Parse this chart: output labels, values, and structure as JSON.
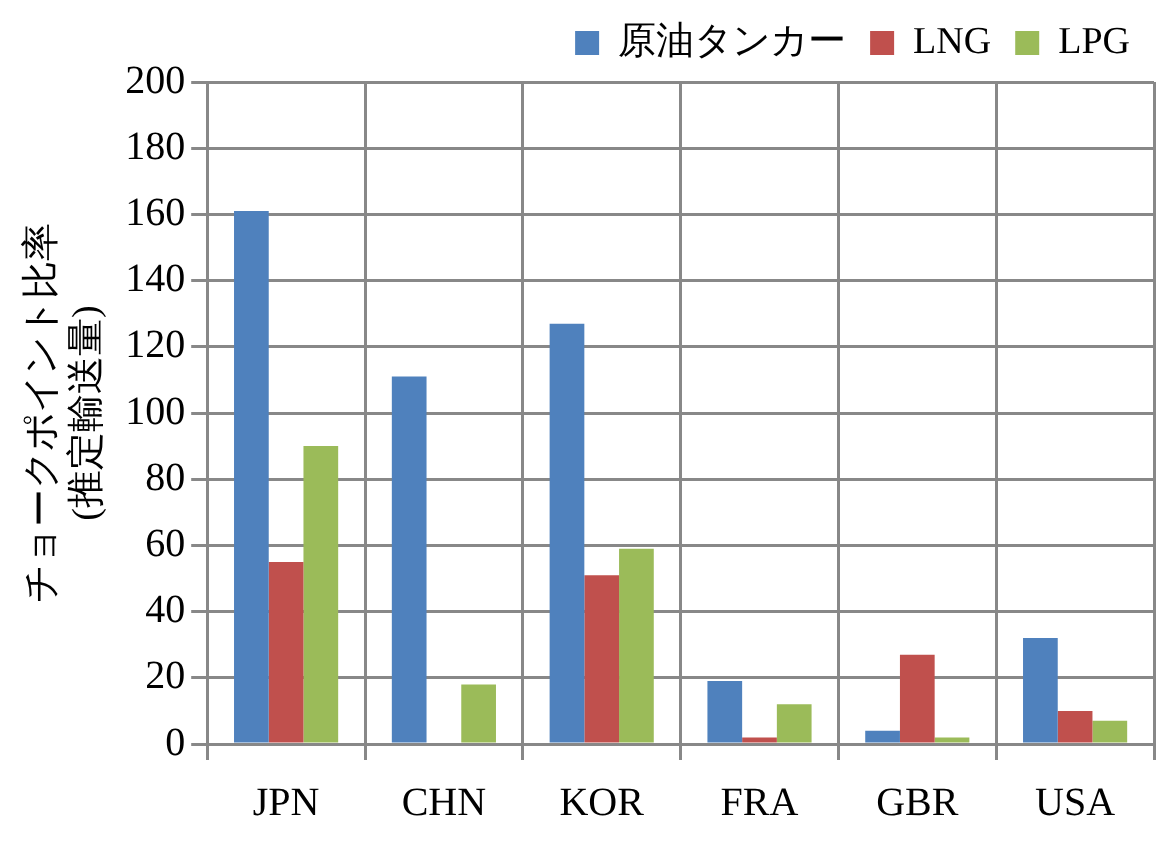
{
  "chart_data": {
    "type": "bar",
    "ylabel": "チョークポイント比率\n(推定輸送量)",
    "categories": [
      "JPN",
      "CHN",
      "KOR",
      "FRA",
      "GBR",
      "USA"
    ],
    "series": [
      {
        "name": "原油タンカー",
        "color": "#4f81bd",
        "values": [
          161,
          111,
          127,
          19,
          4,
          32
        ]
      },
      {
        "name": "LNG",
        "color": "#c0504d",
        "values": [
          55,
          0,
          51,
          2,
          27,
          10
        ]
      },
      {
        "name": "LPG",
        "color": "#9bbb59",
        "values": [
          90,
          18,
          59,
          12,
          2,
          7
        ]
      }
    ],
    "ylim": [
      0,
      200
    ],
    "yticks": [
      0,
      20,
      40,
      60,
      80,
      100,
      120,
      140,
      160,
      180,
      200
    ],
    "grid": true,
    "legend": "top right"
  }
}
